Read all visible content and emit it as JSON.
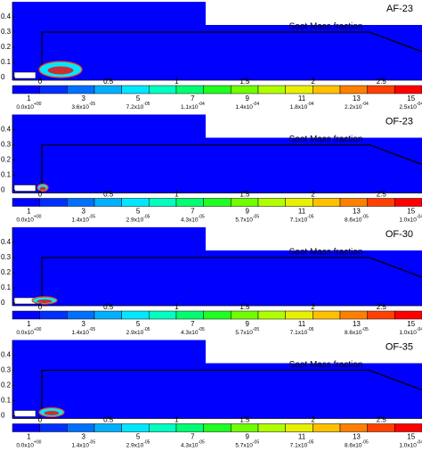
{
  "x_ticks": [
    0,
    0.5,
    1,
    1.5,
    2,
    2.5
  ],
  "y_ticks": [
    0,
    0.1,
    0.2,
    0.3,
    0.4
  ],
  "levels": [
    1,
    3,
    5,
    7,
    9,
    11,
    13,
    15
  ],
  "level_colors": [
    "#0000ff",
    "#0030ff",
    "#0070ff",
    "#00b0ff",
    "#00e8ff",
    "#00ffc0",
    "#00ff70",
    "#20ff20",
    "#70ff00",
    "#b0ff00",
    "#e8f000",
    "#ffc000",
    "#ff8000",
    "#ff4000",
    "#ff0000"
  ],
  "panels": [
    {
      "label": "AF-23",
      "legend_title": "Soot Mass fraction",
      "level_values": [
        {
          "base": "0.0x10",
          "exp": "+00"
        },
        {
          "base": "3.6x10",
          "exp": "-05"
        },
        {
          "base": "7.2x10",
          "exp": "-05"
        },
        {
          "base": "1.1x10",
          "exp": "-04"
        },
        {
          "base": "1.4x10",
          "exp": "-04"
        },
        {
          "base": "1.8x10",
          "exp": "-04"
        },
        {
          "base": "2.2x10",
          "exp": "-04"
        },
        {
          "base": "2.5x10",
          "exp": "-04"
        }
      ]
    },
    {
      "label": "OF-23",
      "legend_title": "Soot Mass fraction",
      "level_values": [
        {
          "base": "0.0x10",
          "exp": "+00"
        },
        {
          "base": "1.4x10",
          "exp": "-05"
        },
        {
          "base": "2.9x10",
          "exp": "-05"
        },
        {
          "base": "4.3x10",
          "exp": "-05"
        },
        {
          "base": "5.7x10",
          "exp": "-05"
        },
        {
          "base": "7.1x10",
          "exp": "-05"
        },
        {
          "base": "8.6x10",
          "exp": "-05"
        },
        {
          "base": "1.0x10",
          "exp": "-04"
        }
      ]
    },
    {
      "label": "OF-30",
      "legend_title": "Soot Mass fraction",
      "level_values": [
        {
          "base": "0.0x10",
          "exp": "+00"
        },
        {
          "base": "1.4x10",
          "exp": "-05"
        },
        {
          "base": "2.9x10",
          "exp": "-05"
        },
        {
          "base": "4.3x10",
          "exp": "-05"
        },
        {
          "base": "5.7x10",
          "exp": "-05"
        },
        {
          "base": "7.1x10",
          "exp": "-05"
        },
        {
          "base": "8.6x10",
          "exp": "-05"
        },
        {
          "base": "1.0x10",
          "exp": "-04"
        }
      ]
    },
    {
      "label": "OF-35",
      "legend_title": "Soot Mass fraction",
      "level_values": [
        {
          "base": "0.0x10",
          "exp": "+00"
        },
        {
          "base": "1.4x10",
          "exp": "-05"
        },
        {
          "base": "2.9x10",
          "exp": "-05"
        },
        {
          "base": "4.3x10",
          "exp": "-05"
        },
        {
          "base": "5.7x10",
          "exp": "-05"
        },
        {
          "base": "7.1x10",
          "exp": "-05"
        },
        {
          "base": "8.6x10",
          "exp": "-05"
        },
        {
          "base": "1.0x10",
          "exp": "-04"
        }
      ]
    }
  ]
}
